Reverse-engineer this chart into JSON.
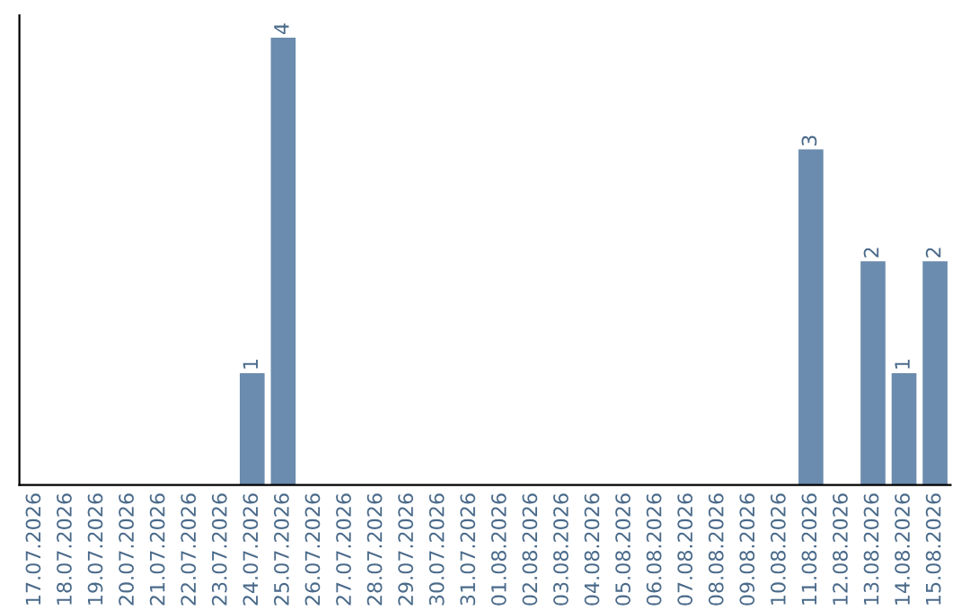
{
  "chart_data": {
    "type": "bar",
    "categories": [
      "17.07.2026",
      "18.07.2026",
      "19.07.2026",
      "20.07.2026",
      "21.07.2026",
      "22.07.2026",
      "23.07.2026",
      "24.07.2026",
      "25.07.2026",
      "26.07.2026",
      "27.07.2026",
      "28.07.2026",
      "29.07.2026",
      "30.07.2026",
      "31.07.2026",
      "01.08.2026",
      "02.08.2026",
      "03.08.2026",
      "04.08.2026",
      "05.08.2026",
      "06.08.2026",
      "07.08.2026",
      "08.08.2026",
      "09.08.2026",
      "10.08.2026",
      "11.08.2026",
      "12.08.2026",
      "13.08.2026",
      "14.08.2026",
      "15.08.2026"
    ],
    "values": [
      0,
      0,
      0,
      0,
      0,
      0,
      0,
      1,
      4,
      0,
      0,
      0,
      0,
      0,
      0,
      0,
      0,
      0,
      0,
      0,
      0,
      0,
      0,
      0,
      0,
      3,
      0,
      2,
      1,
      2
    ],
    "value_labels": [
      null,
      null,
      null,
      null,
      null,
      null,
      null,
      "1",
      "4",
      null,
      null,
      null,
      null,
      null,
      null,
      null,
      null,
      null,
      null,
      null,
      null,
      null,
      null,
      null,
      null,
      "3",
      null,
      "2",
      "1",
      "2"
    ],
    "color": "#6b8cae",
    "grid": false,
    "legend": false
  }
}
